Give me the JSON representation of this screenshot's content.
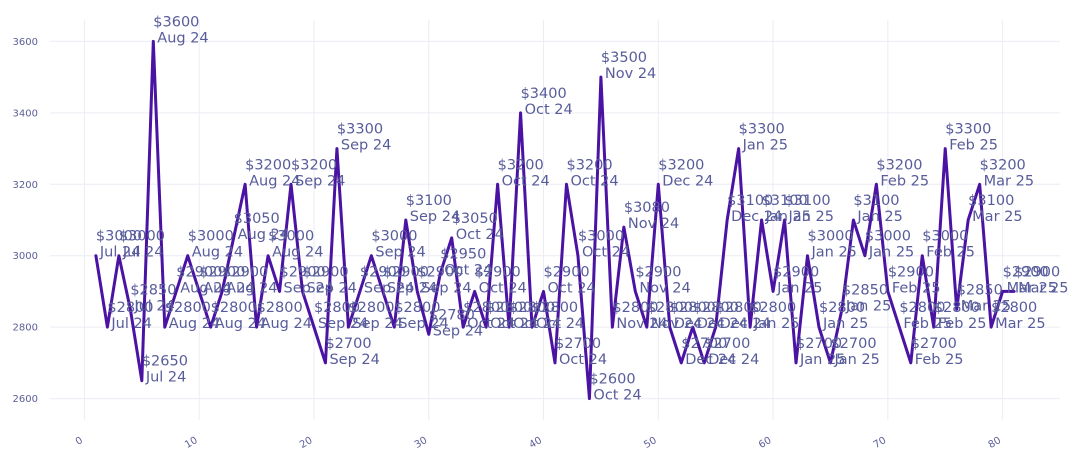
{
  "chart_data": {
    "type": "line",
    "title": "",
    "xlabel": "",
    "ylabel": "",
    "xlim": [
      -3,
      85
    ],
    "ylim": [
      2540,
      3660
    ],
    "grid": true,
    "x_ticks": [
      0,
      10,
      20,
      30,
      40,
      50,
      60,
      70,
      80
    ],
    "y_ticks": [
      2600,
      2800,
      3000,
      3200,
      3400,
      3600
    ],
    "x_tick_labels": [
      "0",
      "10",
      "20",
      "30",
      "40",
      "50",
      "60",
      "70",
      "80"
    ],
    "y_tick_labels": [
      "2600",
      "2800",
      "3000",
      "3200",
      "3400",
      "3600"
    ],
    "series_color": "#4b13a3",
    "label_color": "#585c9a",
    "tick_color": "#5b5f97",
    "series": [
      {
        "points": [
          {
            "x": 1,
            "y": 3000,
            "price": "$3000",
            "date": "Jul 24"
          },
          {
            "x": 2,
            "y": 2800,
            "price": "$2800",
            "date": "Jul 24"
          },
          {
            "x": 3,
            "y": 3000,
            "price": "$3000",
            "date": "Jul 24"
          },
          {
            "x": 4,
            "y": 2850,
            "price": "$2850",
            "date": "Jul 24"
          },
          {
            "x": 5,
            "y": 2650,
            "price": "$2650",
            "date": "Jul 24"
          },
          {
            "x": 6,
            "y": 3600,
            "price": "$3600",
            "date": "Aug 24"
          },
          {
            "x": 7,
            "y": 2800,
            "price": "$2800",
            "date": "Aug 24"
          },
          {
            "x": 8,
            "y": 2900,
            "price": "$2900",
            "date": "Aug 24"
          },
          {
            "x": 9,
            "y": 3000,
            "price": "$3000",
            "date": "Aug 24"
          },
          {
            "x": 10,
            "y": 2900,
            "price": "$2900",
            "date": "Aug 24"
          },
          {
            "x": 11,
            "y": 2800,
            "price": "$2800",
            "date": "Aug 24"
          },
          {
            "x": 12,
            "y": 2900,
            "price": "$2900",
            "date": "Aug 24"
          },
          {
            "x": 13,
            "y": 3050,
            "price": "$3050",
            "date": "Aug 24"
          },
          {
            "x": 14,
            "y": 3200,
            "price": "$3200",
            "date": "Aug 24"
          },
          {
            "x": 15,
            "y": 2800,
            "price": "$2800",
            "date": "Aug 24"
          },
          {
            "x": 16,
            "y": 3000,
            "price": "$3000",
            "date": "Aug 24"
          },
          {
            "x": 17,
            "y": 2900,
            "price": "$2900",
            "date": "Sep 24"
          },
          {
            "x": 18,
            "y": 3200,
            "price": "$3200",
            "date": "Sep 24"
          },
          {
            "x": 19,
            "y": 2900,
            "price": "$2900",
            "date": "Sep 24"
          },
          {
            "x": 20,
            "y": 2800,
            "price": "$2800",
            "date": "Sep 24"
          },
          {
            "x": 21,
            "y": 2700,
            "price": "$2700",
            "date": "Sep 24"
          },
          {
            "x": 22,
            "y": 3300,
            "price": "$3300",
            "date": "Sep 24"
          },
          {
            "x": 23,
            "y": 2800,
            "price": "$2800",
            "date": "Sep 24"
          },
          {
            "x": 24,
            "y": 2900,
            "price": "$2900",
            "date": "Sep 24"
          },
          {
            "x": 25,
            "y": 3000,
            "price": "$3000",
            "date": "Sep 24"
          },
          {
            "x": 26,
            "y": 2900,
            "price": "$2900",
            "date": "Sep 24"
          },
          {
            "x": 27,
            "y": 2800,
            "price": "$2800",
            "date": "Sep 24"
          },
          {
            "x": 28,
            "y": 3100,
            "price": "$3100",
            "date": "Sep 24"
          },
          {
            "x": 29,
            "y": 2900,
            "price": "$2900",
            "date": "Sep 24"
          },
          {
            "x": 30,
            "y": 2780,
            "price": "$2780",
            "date": "Sep 24"
          },
          {
            "x": 31,
            "y": 2950,
            "price": "$2950",
            "date": "Oct 24"
          },
          {
            "x": 32,
            "y": 3050,
            "price": "$3050",
            "date": "Oct 24"
          },
          {
            "x": 33,
            "y": 2800,
            "price": "$2800",
            "date": "Oct 24"
          },
          {
            "x": 34,
            "y": 2900,
            "price": "$2900",
            "date": "Oct 24"
          },
          {
            "x": 35,
            "y": 2800,
            "price": "$2800",
            "date": "Oct 24"
          },
          {
            "x": 36,
            "y": 3200,
            "price": "$3200",
            "date": "Oct 24"
          },
          {
            "x": 37,
            "y": 2800,
            "price": "$2800",
            "date": "Oct 24"
          },
          {
            "x": 38,
            "y": 3400,
            "price": "$3400",
            "date": "Oct 24"
          },
          {
            "x": 39,
            "y": 2800,
            "price": "$2800",
            "date": "Oct 24"
          },
          {
            "x": 40,
            "y": 2900,
            "price": "$2900",
            "date": "Oct 24"
          },
          {
            "x": 41,
            "y": 2700,
            "price": "$2700",
            "date": "Oct 24"
          },
          {
            "x": 42,
            "y": 3200,
            "price": "$3200",
            "date": "Oct 24"
          },
          {
            "x": 43,
            "y": 3000,
            "price": "$3000",
            "date": "Oct 24"
          },
          {
            "x": 44,
            "y": 2600,
            "price": "$2600",
            "date": "Oct 24"
          },
          {
            "x": 45,
            "y": 3500,
            "price": "$3500",
            "date": "Nov 24"
          },
          {
            "x": 46,
            "y": 2800,
            "price": "$2800",
            "date": "Nov 24"
          },
          {
            "x": 47,
            "y": 3080,
            "price": "$3080",
            "date": "Nov 24"
          },
          {
            "x": 48,
            "y": 2900,
            "price": "$2900",
            "date": "Nov 24"
          },
          {
            "x": 49,
            "y": 2800,
            "price": "$2800",
            "date": "Nov 24"
          },
          {
            "x": 50,
            "y": 3200,
            "price": "$3200",
            "date": "Dec 24"
          },
          {
            "x": 51,
            "y": 2800,
            "price": "$2800",
            "date": "Dec 24"
          },
          {
            "x": 52,
            "y": 2700,
            "price": "$2700",
            "date": "Dec 24"
          },
          {
            "x": 53,
            "y": 2800,
            "price": "$2800",
            "date": "Dec 24"
          },
          {
            "x": 54,
            "y": 2700,
            "price": "$2700",
            "date": "Dec 24"
          },
          {
            "x": 55,
            "y": 2800,
            "price": "$2800",
            "date": "Dec 24"
          },
          {
            "x": 56,
            "y": 3100,
            "price": "$3100",
            "date": "Dec 24"
          },
          {
            "x": 57,
            "y": 3300,
            "price": "$3300",
            "date": "Jan 25"
          },
          {
            "x": 58,
            "y": 2800,
            "price": "$2800",
            "date": "Jan 25"
          },
          {
            "x": 59,
            "y": 3100,
            "price": "$3100",
            "date": "Jan 25"
          },
          {
            "x": 60,
            "y": 2900,
            "price": "$2900",
            "date": "Jan 25"
          },
          {
            "x": 61,
            "y": 3100,
            "price": "$3100",
            "date": "Jan 25"
          },
          {
            "x": 62,
            "y": 2700,
            "price": "$2700",
            "date": "Jan 25"
          },
          {
            "x": 63,
            "y": 3000,
            "price": "$3000",
            "date": "Jan 25"
          },
          {
            "x": 64,
            "y": 2800,
            "price": "$2800",
            "date": "Jan 25"
          },
          {
            "x": 65,
            "y": 2700,
            "price": "$2700",
            "date": "Jan 25"
          },
          {
            "x": 66,
            "y": 2850,
            "price": "$2850",
            "date": "Jan 25"
          },
          {
            "x": 67,
            "y": 3100,
            "price": "$3100",
            "date": "Jan 25"
          },
          {
            "x": 68,
            "y": 3000,
            "price": "$3000",
            "date": "Jan 25"
          },
          {
            "x": 69,
            "y": 3200,
            "price": "$3200",
            "date": "Feb 25"
          },
          {
            "x": 70,
            "y": 2900,
            "price": "$2900",
            "date": "Feb 25"
          },
          {
            "x": 71,
            "y": 2800,
            "price": "$2800",
            "date": "Feb 25"
          },
          {
            "x": 72,
            "y": 2700,
            "price": "$2700",
            "date": "Feb 25"
          },
          {
            "x": 73,
            "y": 3000,
            "price": "$3000",
            "date": "Feb 25"
          },
          {
            "x": 74,
            "y": 2800,
            "price": "$2800",
            "date": "Feb 25"
          },
          {
            "x": 75,
            "y": 3300,
            "price": "$3300",
            "date": "Feb 25"
          },
          {
            "x": 76,
            "y": 2850,
            "price": "$2850",
            "date": "Mar 25"
          },
          {
            "x": 77,
            "y": 3100,
            "price": "$3100",
            "date": "Mar 25"
          },
          {
            "x": 78,
            "y": 3200,
            "price": "$3200",
            "date": "Mar 25"
          },
          {
            "x": 79,
            "y": 2800,
            "price": "$2800",
            "date": "Mar 25"
          },
          {
            "x": 80,
            "y": 2900,
            "price": "$2900",
            "date": "Mar 25"
          },
          {
            "x": 81,
            "y": 2900,
            "price": "$2900",
            "date": "Mar 25"
          }
        ]
      }
    ]
  }
}
